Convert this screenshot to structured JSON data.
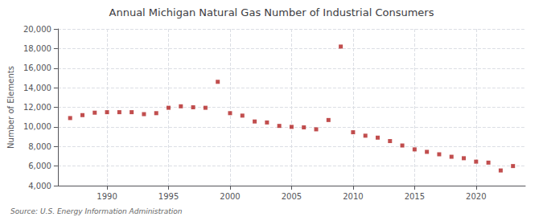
{
  "chart_data": {
    "type": "scatter",
    "title": "Annual Michigan Natural Gas Number of Industrial Consumers",
    "ylabel": "Number of Elements",
    "source": "Source: U.S. Energy Information Administration",
    "x": [
      1987,
      1988,
      1989,
      1990,
      1991,
      1992,
      1993,
      1994,
      1995,
      1996,
      1997,
      1998,
      1999,
      2000,
      2001,
      2002,
      2003,
      2004,
      2005,
      2006,
      2007,
      2008,
      2009,
      2010,
      2011,
      2012,
      2013,
      2014,
      2015,
      2016,
      2017,
      2018,
      2019,
      2020,
      2021,
      2022,
      2023
    ],
    "values": [
      10900,
      11200,
      11450,
      11500,
      11500,
      11500,
      11300,
      11400,
      11950,
      12100,
      12000,
      11950,
      14600,
      11400,
      11150,
      10550,
      10450,
      10100,
      10000,
      9950,
      9750,
      10700,
      18200,
      9450,
      9100,
      8900,
      8550,
      8100,
      7700,
      7450,
      7200,
      6950,
      6800,
      6450,
      6350,
      5550,
      6000
    ],
    "color": "#b22222",
    "marker": "square",
    "xlim": [
      1986,
      2024
    ],
    "xticks": [
      1990,
      1995,
      2000,
      2005,
      2010,
      2015,
      2020
    ],
    "ylim": [
      4000,
      20000
    ],
    "yticks": [
      {
        "value": 4000,
        "label": "4,000"
      },
      {
        "value": 6000,
        "label": "6,000"
      },
      {
        "value": 8000,
        "label": "8,000"
      },
      {
        "value": 10000,
        "label": "10,000"
      },
      {
        "value": 12000,
        "label": "12,000"
      },
      {
        "value": 14000,
        "label": "14,000"
      },
      {
        "value": 16000,
        "label": "16,000"
      },
      {
        "value": 18000,
        "label": "18,000"
      },
      {
        "value": 20000,
        "label": "20,000"
      }
    ],
    "grid": true
  }
}
